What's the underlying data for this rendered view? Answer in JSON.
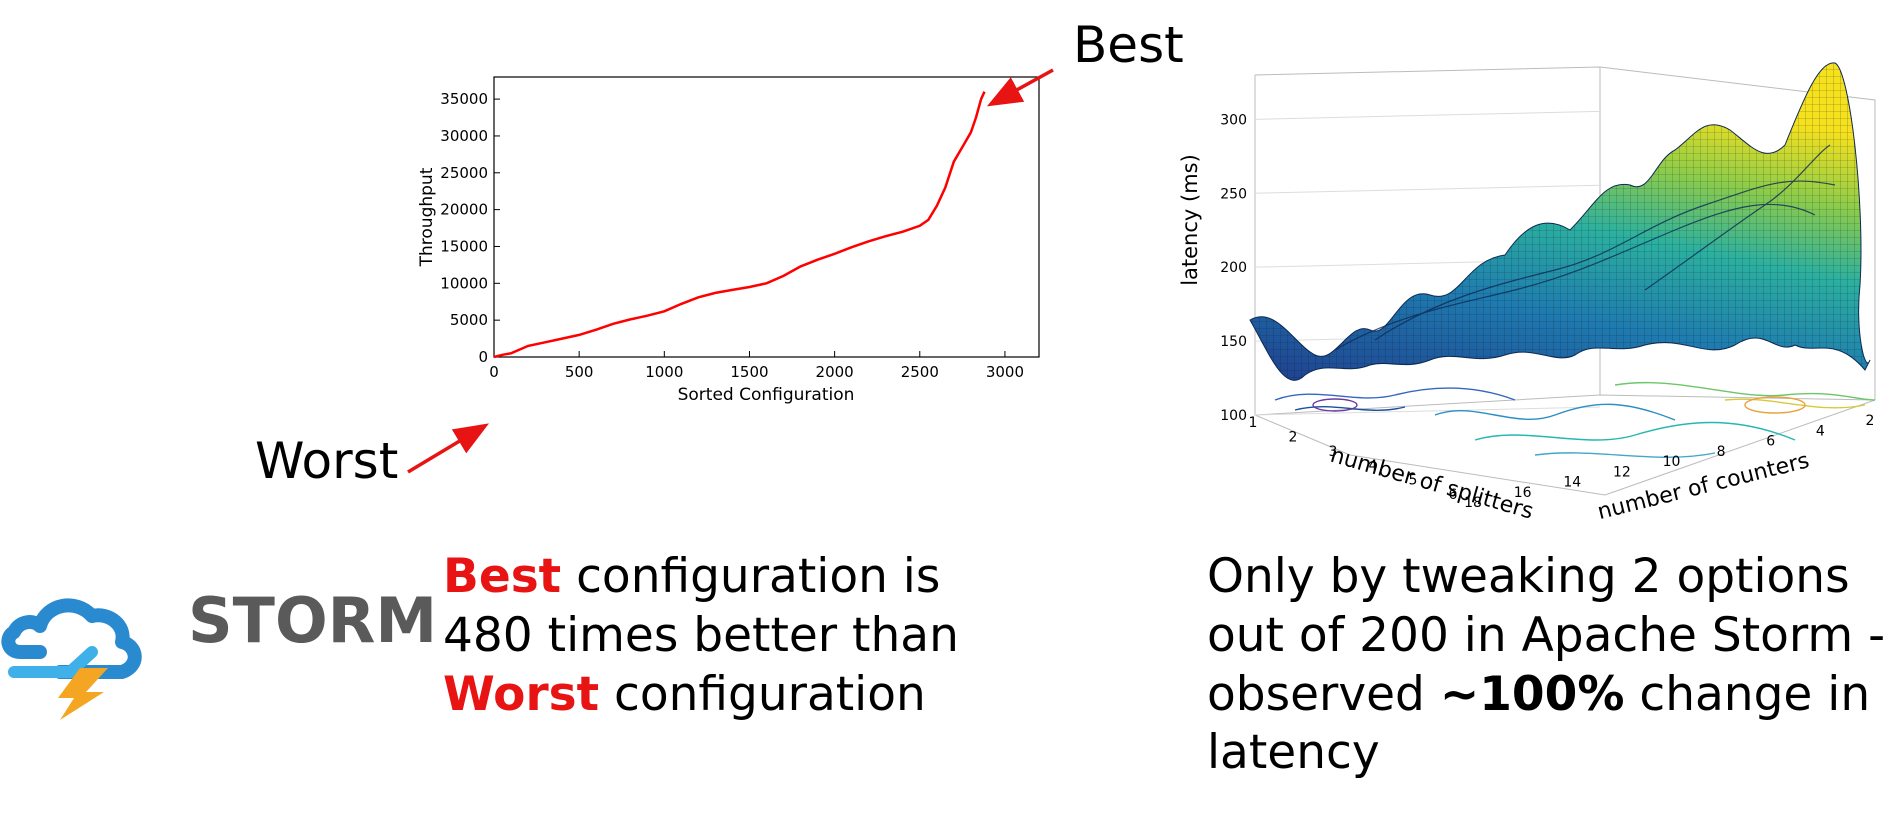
{
  "chart_data": [
    {
      "type": "line",
      "xlabel": "Sorted Configuration",
      "ylabel": "Throughput",
      "xlim": [
        0,
        3200
      ],
      "ylim": [
        0,
        38000
      ],
      "xticks": [
        "0",
        "500",
        "1000",
        "1500",
        "2000",
        "2500",
        "3000"
      ],
      "yticks": [
        "0",
        "5000",
        "10000",
        "15000",
        "20000",
        "25000",
        "30000",
        "35000"
      ],
      "series": [
        {
          "color": "#ff0000",
          "x": [
            0,
            50,
            100,
            150,
            200,
            300,
            400,
            500,
            600,
            700,
            800,
            900,
            1000,
            1100,
            1200,
            1300,
            1400,
            1500,
            1600,
            1700,
            1800,
            1900,
            2000,
            2100,
            2200,
            2300,
            2400,
            2500,
            2550,
            2600,
            2650,
            2700,
            2750,
            2800,
            2830,
            2860,
            2880
          ],
          "y": [
            0,
            300,
            500,
            1000,
            1500,
            2000,
            2500,
            3000,
            3700,
            4500,
            5100,
            5600,
            6200,
            7200,
            8100,
            8700,
            9100,
            9500,
            10000,
            11000,
            12300,
            13200,
            14000,
            14900,
            15700,
            16400,
            17000,
            17800,
            18600,
            20500,
            23000,
            26500,
            28500,
            30500,
            32500,
            35000,
            36000
          ]
        }
      ],
      "annotations": [
        "Best",
        "Worst"
      ]
    },
    {
      "type": "surface",
      "zlabel": "latency (ms)",
      "xlabel": "number of splitters",
      "ylabel": "number of counters",
      "zticks": [
        "100",
        "150",
        "200",
        "250",
        "300"
      ],
      "xticks": [
        "1",
        "2",
        "3",
        "4",
        "5",
        "6"
      ],
      "yticks": [
        "18",
        "16",
        "14",
        "12",
        "10",
        "8",
        "6",
        "4",
        "2"
      ],
      "zlim": [
        100,
        330
      ]
    }
  ],
  "annotations": {
    "best": "Best",
    "worst": "Worst"
  },
  "logo": {
    "text": "STORM"
  },
  "caption_left": {
    "best": "Best",
    "part1": " configuration is 480 times better than ",
    "worst": "Worst",
    "part2": " configuration"
  },
  "caption_right": {
    "part1": "Only by tweaking 2 options out of 200 in Apache Storm - observed ",
    "bold": "~100%",
    "part2": " change in latency"
  }
}
